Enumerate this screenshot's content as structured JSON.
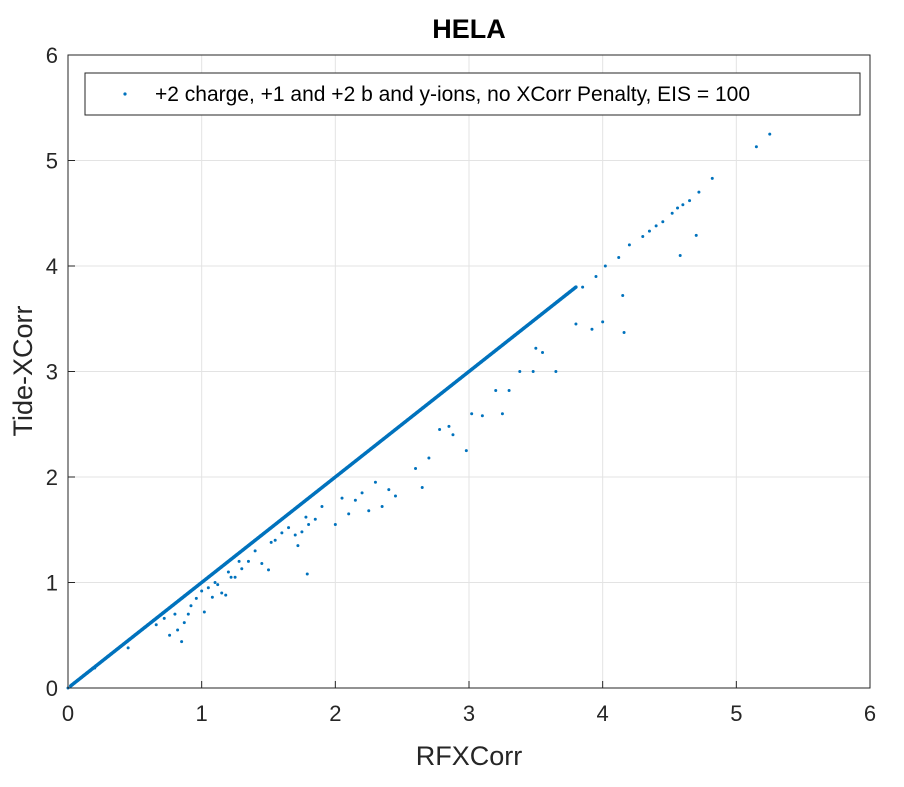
{
  "chart_data": {
    "type": "scatter",
    "title": "HELA",
    "xlabel": "RFXCorr",
    "ylabel": "Tide-XCorr",
    "xlim": [
      0,
      6
    ],
    "ylim": [
      0,
      6
    ],
    "xticks": [
      "0",
      "1",
      "2",
      "3",
      "4",
      "5",
      "6"
    ],
    "yticks": [
      "0",
      "1",
      "2",
      "3",
      "4",
      "5",
      "6"
    ],
    "grid": true,
    "legend_position": "top-right",
    "marker_color": "#0072BD",
    "diagonal_band": {
      "x_start": 0.02,
      "x_end": 3.8,
      "density_per_unit": 160
    },
    "series": [
      {
        "name": "+2 charge, +1 and +2 b and y-ions, no XCorr Penalty, EIS = 100",
        "points": [
          [
            0.0,
            0.0
          ],
          [
            0.12,
            0.12
          ],
          [
            0.2,
            0.19
          ],
          [
            0.3,
            0.3
          ],
          [
            0.45,
            0.38
          ],
          [
            0.66,
            0.6
          ],
          [
            0.72,
            0.66
          ],
          [
            0.76,
            0.5
          ],
          [
            0.8,
            0.7
          ],
          [
            0.82,
            0.55
          ],
          [
            0.85,
            0.44
          ],
          [
            0.87,
            0.62
          ],
          [
            0.9,
            0.7
          ],
          [
            0.92,
            0.78
          ],
          [
            0.96,
            0.85
          ],
          [
            1.0,
            0.92
          ],
          [
            1.02,
            0.72
          ],
          [
            1.05,
            0.95
          ],
          [
            1.08,
            0.86
          ],
          [
            1.1,
            1.0
          ],
          [
            1.12,
            0.98
          ],
          [
            1.15,
            0.9
          ],
          [
            1.18,
            0.88
          ],
          [
            1.2,
            1.1
          ],
          [
            1.22,
            1.05
          ],
          [
            1.25,
            1.05
          ],
          [
            1.28,
            1.2
          ],
          [
            1.3,
            1.13
          ],
          [
            1.35,
            1.2
          ],
          [
            1.4,
            1.3
          ],
          [
            1.45,
            1.18
          ],
          [
            1.5,
            1.12
          ],
          [
            1.52,
            1.38
          ],
          [
            1.55,
            1.4
          ],
          [
            1.6,
            1.47
          ],
          [
            1.65,
            1.52
          ],
          [
            1.7,
            1.45
          ],
          [
            1.72,
            1.35
          ],
          [
            1.75,
            1.48
          ],
          [
            1.78,
            1.62
          ],
          [
            1.79,
            1.08
          ],
          [
            1.8,
            1.55
          ],
          [
            1.85,
            1.6
          ],
          [
            1.9,
            1.72
          ],
          [
            2.0,
            1.55
          ],
          [
            2.05,
            1.8
          ],
          [
            2.1,
            1.65
          ],
          [
            2.15,
            1.78
          ],
          [
            2.2,
            1.85
          ],
          [
            2.25,
            1.68
          ],
          [
            2.3,
            1.95
          ],
          [
            2.35,
            1.72
          ],
          [
            2.4,
            1.88
          ],
          [
            2.45,
            1.82
          ],
          [
            2.6,
            2.08
          ],
          [
            2.65,
            1.9
          ],
          [
            2.7,
            2.18
          ],
          [
            2.78,
            2.45
          ],
          [
            2.85,
            2.48
          ],
          [
            2.88,
            2.4
          ],
          [
            2.98,
            2.25
          ],
          [
            3.02,
            2.6
          ],
          [
            3.1,
            2.58
          ],
          [
            3.2,
            2.82
          ],
          [
            3.25,
            2.6
          ],
          [
            3.3,
            2.82
          ],
          [
            3.38,
            3.0
          ],
          [
            3.48,
            3.0
          ],
          [
            3.5,
            3.22
          ],
          [
            3.55,
            3.18
          ],
          [
            3.65,
            3.0
          ],
          [
            3.8,
            3.45
          ],
          [
            3.92,
            3.4
          ],
          [
            4.0,
            3.47
          ],
          [
            4.15,
            3.72
          ],
          [
            4.16,
            3.37
          ],
          [
            4.58,
            4.1
          ],
          [
            4.7,
            4.29
          ],
          [
            3.85,
            3.8
          ],
          [
            3.95,
            3.9
          ],
          [
            4.02,
            4.0
          ],
          [
            4.12,
            4.08
          ],
          [
            4.2,
            4.2
          ],
          [
            4.3,
            4.28
          ],
          [
            4.35,
            4.33
          ],
          [
            4.4,
            4.38
          ],
          [
            4.45,
            4.42
          ],
          [
            4.52,
            4.5
          ],
          [
            4.56,
            4.55
          ],
          [
            4.6,
            4.58
          ],
          [
            4.65,
            4.62
          ],
          [
            4.72,
            4.7
          ],
          [
            4.82,
            4.83
          ],
          [
            5.15,
            5.13
          ],
          [
            5.25,
            5.25
          ]
        ]
      }
    ]
  }
}
